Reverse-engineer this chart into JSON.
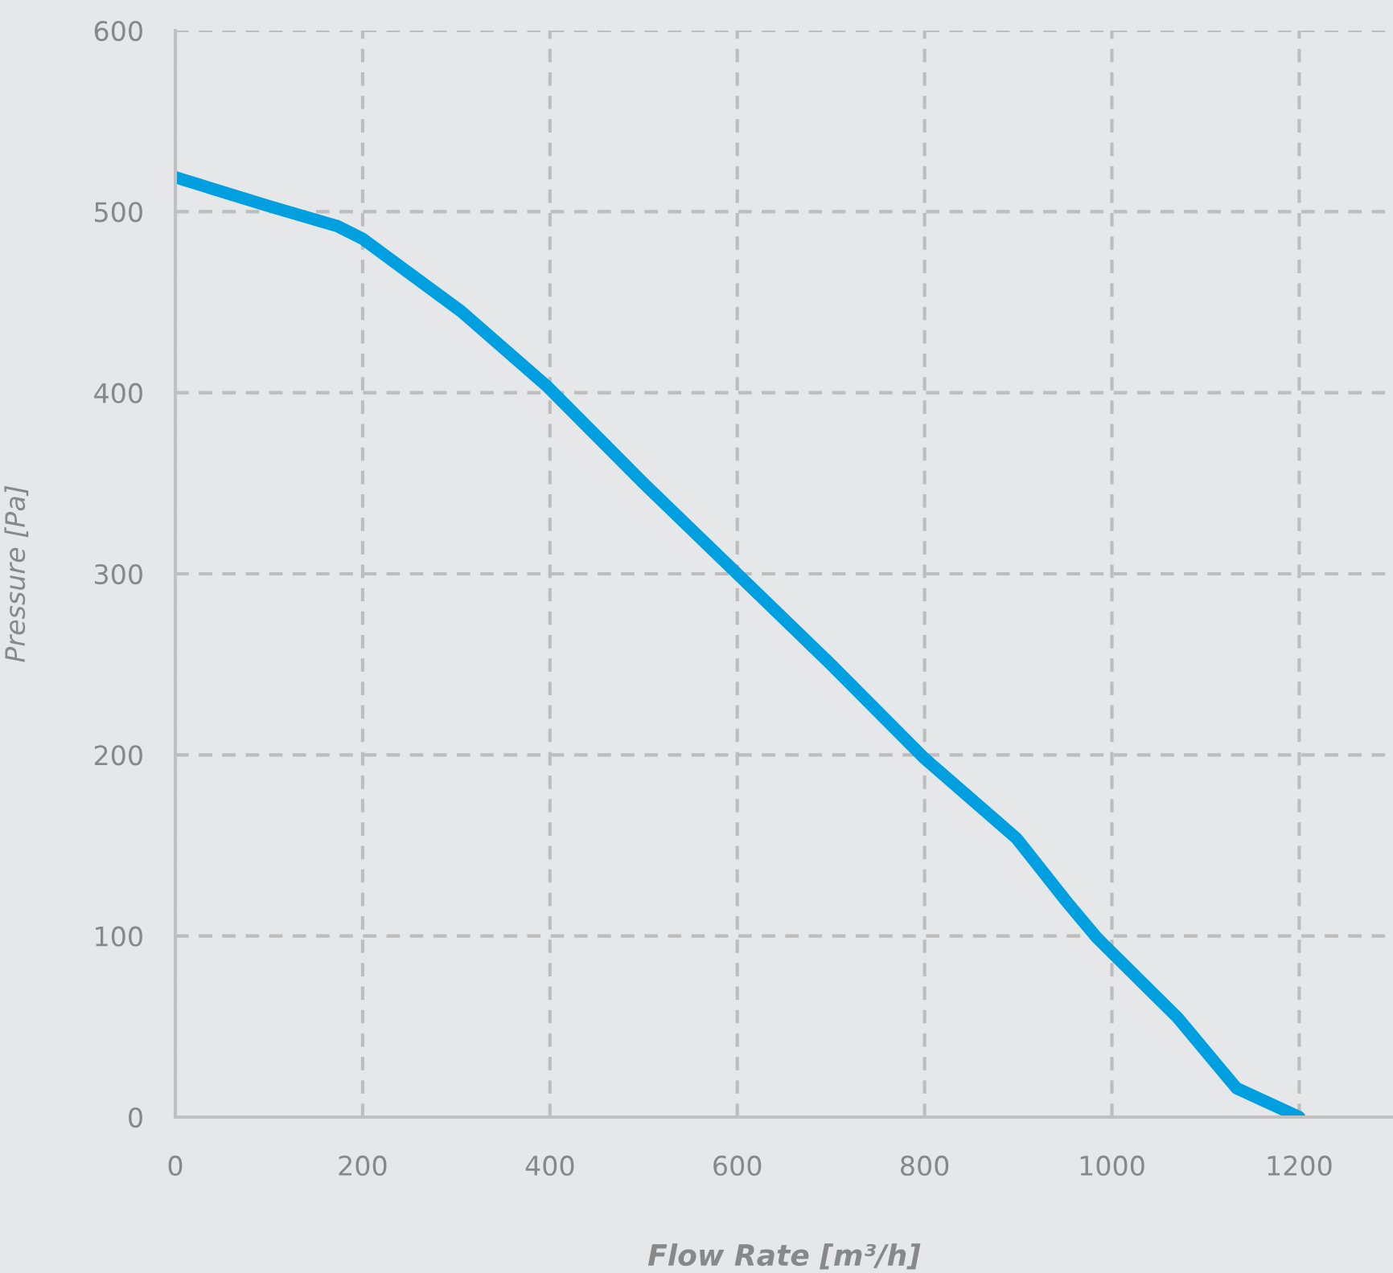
{
  "chart_data": {
    "type": "line",
    "xlabel": "Flow Rate [m³/h]",
    "ylabel": "Pressure [Pa]",
    "x": [
      0,
      100,
      173,
      200,
      305,
      396,
      500,
      600,
      700,
      800,
      898,
      950,
      984,
      1070,
      1133,
      1200
    ],
    "series": [
      {
        "color": "#009fdf",
        "values": [
          519,
          503,
          492,
          485,
          445,
          404,
          350,
          300,
          250,
          198,
          154,
          120,
          99,
          55,
          16,
          0
        ]
      }
    ],
    "xlim": [
      0,
      1300
    ],
    "xticks": [
      0,
      200,
      400,
      600,
      800,
      1000,
      1200
    ],
    "ylim": [
      0,
      600
    ],
    "yticks": [
      0,
      100,
      200,
      300,
      400,
      500,
      600
    ],
    "grid": true,
    "marker": "none",
    "line_style": "solid"
  }
}
